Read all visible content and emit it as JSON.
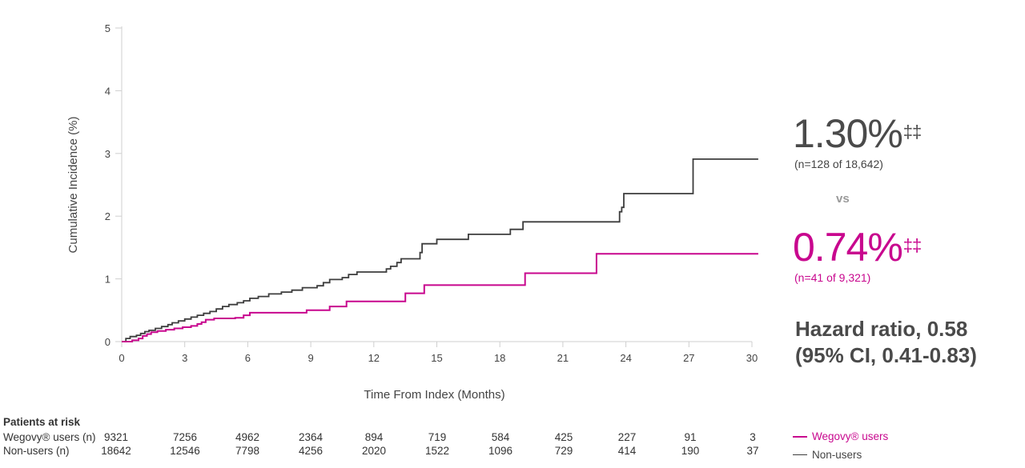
{
  "chart_data": {
    "type": "line",
    "step": true,
    "xlabel": "Time From Index (Months)",
    "ylabel": "Cumulative Incidence (%)",
    "xlim": [
      0,
      30
    ],
    "ylim": [
      0,
      5
    ],
    "xticks": [
      0,
      3,
      6,
      9,
      12,
      15,
      18,
      21,
      24,
      27,
      30
    ],
    "yticks": [
      0,
      1,
      2,
      3,
      4,
      5
    ],
    "grid": false,
    "series": [
      {
        "name": "Non-users",
        "color": "#3d3d3d",
        "points": [
          [
            0,
            0
          ],
          [
            0.2,
            0.05
          ],
          [
            0.4,
            0.08
          ],
          [
            0.7,
            0.1
          ],
          [
            0.9,
            0.13
          ],
          [
            1.1,
            0.16
          ],
          [
            1.3,
            0.18
          ],
          [
            1.6,
            0.21
          ],
          [
            1.9,
            0.24
          ],
          [
            2.2,
            0.27
          ],
          [
            2.4,
            0.3
          ],
          [
            2.7,
            0.33
          ],
          [
            3.0,
            0.36
          ],
          [
            3.3,
            0.39
          ],
          [
            3.6,
            0.42
          ],
          [
            3.9,
            0.45
          ],
          [
            4.2,
            0.48
          ],
          [
            4.5,
            0.52
          ],
          [
            4.8,
            0.56
          ],
          [
            5.1,
            0.59
          ],
          [
            5.5,
            0.62
          ],
          [
            5.8,
            0.65
          ],
          [
            6.1,
            0.69
          ],
          [
            6.5,
            0.72
          ],
          [
            7.0,
            0.76
          ],
          [
            7.6,
            0.79
          ],
          [
            8.1,
            0.82
          ],
          [
            8.6,
            0.86
          ],
          [
            9.3,
            0.89
          ],
          [
            9.6,
            0.94
          ],
          [
            9.9,
            0.99
          ],
          [
            10.5,
            1.02
          ],
          [
            10.8,
            1.07
          ],
          [
            11.2,
            1.11
          ],
          [
            12.6,
            1.16
          ],
          [
            12.8,
            1.2
          ],
          [
            13.1,
            1.26
          ],
          [
            13.3,
            1.32
          ],
          [
            14.2,
            1.42
          ],
          [
            14.3,
            1.56
          ],
          [
            15.0,
            1.63
          ],
          [
            16.5,
            1.71
          ],
          [
            18.5,
            1.79
          ],
          [
            19.1,
            1.91
          ],
          [
            23.7,
            2.07
          ],
          [
            23.8,
            2.14
          ],
          [
            23.9,
            2.36
          ],
          [
            27.2,
            2.91
          ],
          [
            30.3,
            2.91
          ]
        ]
      },
      {
        "name": "Wegovy® users",
        "color": "#c8078e",
        "points": [
          [
            0,
            0
          ],
          [
            0.5,
            0.02
          ],
          [
            0.8,
            0.05
          ],
          [
            1.0,
            0.09
          ],
          [
            1.2,
            0.12
          ],
          [
            1.4,
            0.15
          ],
          [
            1.7,
            0.17
          ],
          [
            2.1,
            0.19
          ],
          [
            2.5,
            0.21
          ],
          [
            2.9,
            0.23
          ],
          [
            3.3,
            0.25
          ],
          [
            3.6,
            0.28
          ],
          [
            3.8,
            0.31
          ],
          [
            4.0,
            0.35
          ],
          [
            4.4,
            0.37
          ],
          [
            5.4,
            0.38
          ],
          [
            5.8,
            0.42
          ],
          [
            6.1,
            0.46
          ],
          [
            8.8,
            0.5
          ],
          [
            9.9,
            0.56
          ],
          [
            10.7,
            0.64
          ],
          [
            13.5,
            0.77
          ],
          [
            14.4,
            0.9
          ],
          [
            19.2,
            1.09
          ],
          [
            22.6,
            1.4
          ],
          [
            30.3,
            1.4
          ]
        ]
      }
    ]
  },
  "annotations": {
    "nonusers_pct": "1.30%",
    "nonusers_mark": "‡‡",
    "nonusers_n": "(n=128 of 18,642)",
    "vs": "vs",
    "wegovy_pct": "0.74%",
    "wegovy_mark": "‡‡",
    "wegovy_n": "(n=41 of 9,321)",
    "hazard_line1": "Hazard ratio, 0.58",
    "hazard_line2": "(95% CI, 0.41-0.83)"
  },
  "risk_table": {
    "title": "Patients at risk",
    "rows": [
      {
        "label": "Wegovy® users (n)",
        "values": [
          "9321",
          "7256",
          "4962",
          "2364",
          "894",
          "719",
          "584",
          "425",
          "227",
          "91",
          "3"
        ]
      },
      {
        "label": "Non-users (n)",
        "values": [
          "18642",
          "12546",
          "7798",
          "4256",
          "2020",
          "1522",
          "1096",
          "729",
          "414",
          "190",
          "37"
        ]
      }
    ]
  },
  "legend": [
    {
      "label": "Wegovy® users",
      "color": "#c8078e"
    },
    {
      "label": "Non-users",
      "color": "#3d3d3d"
    }
  ]
}
